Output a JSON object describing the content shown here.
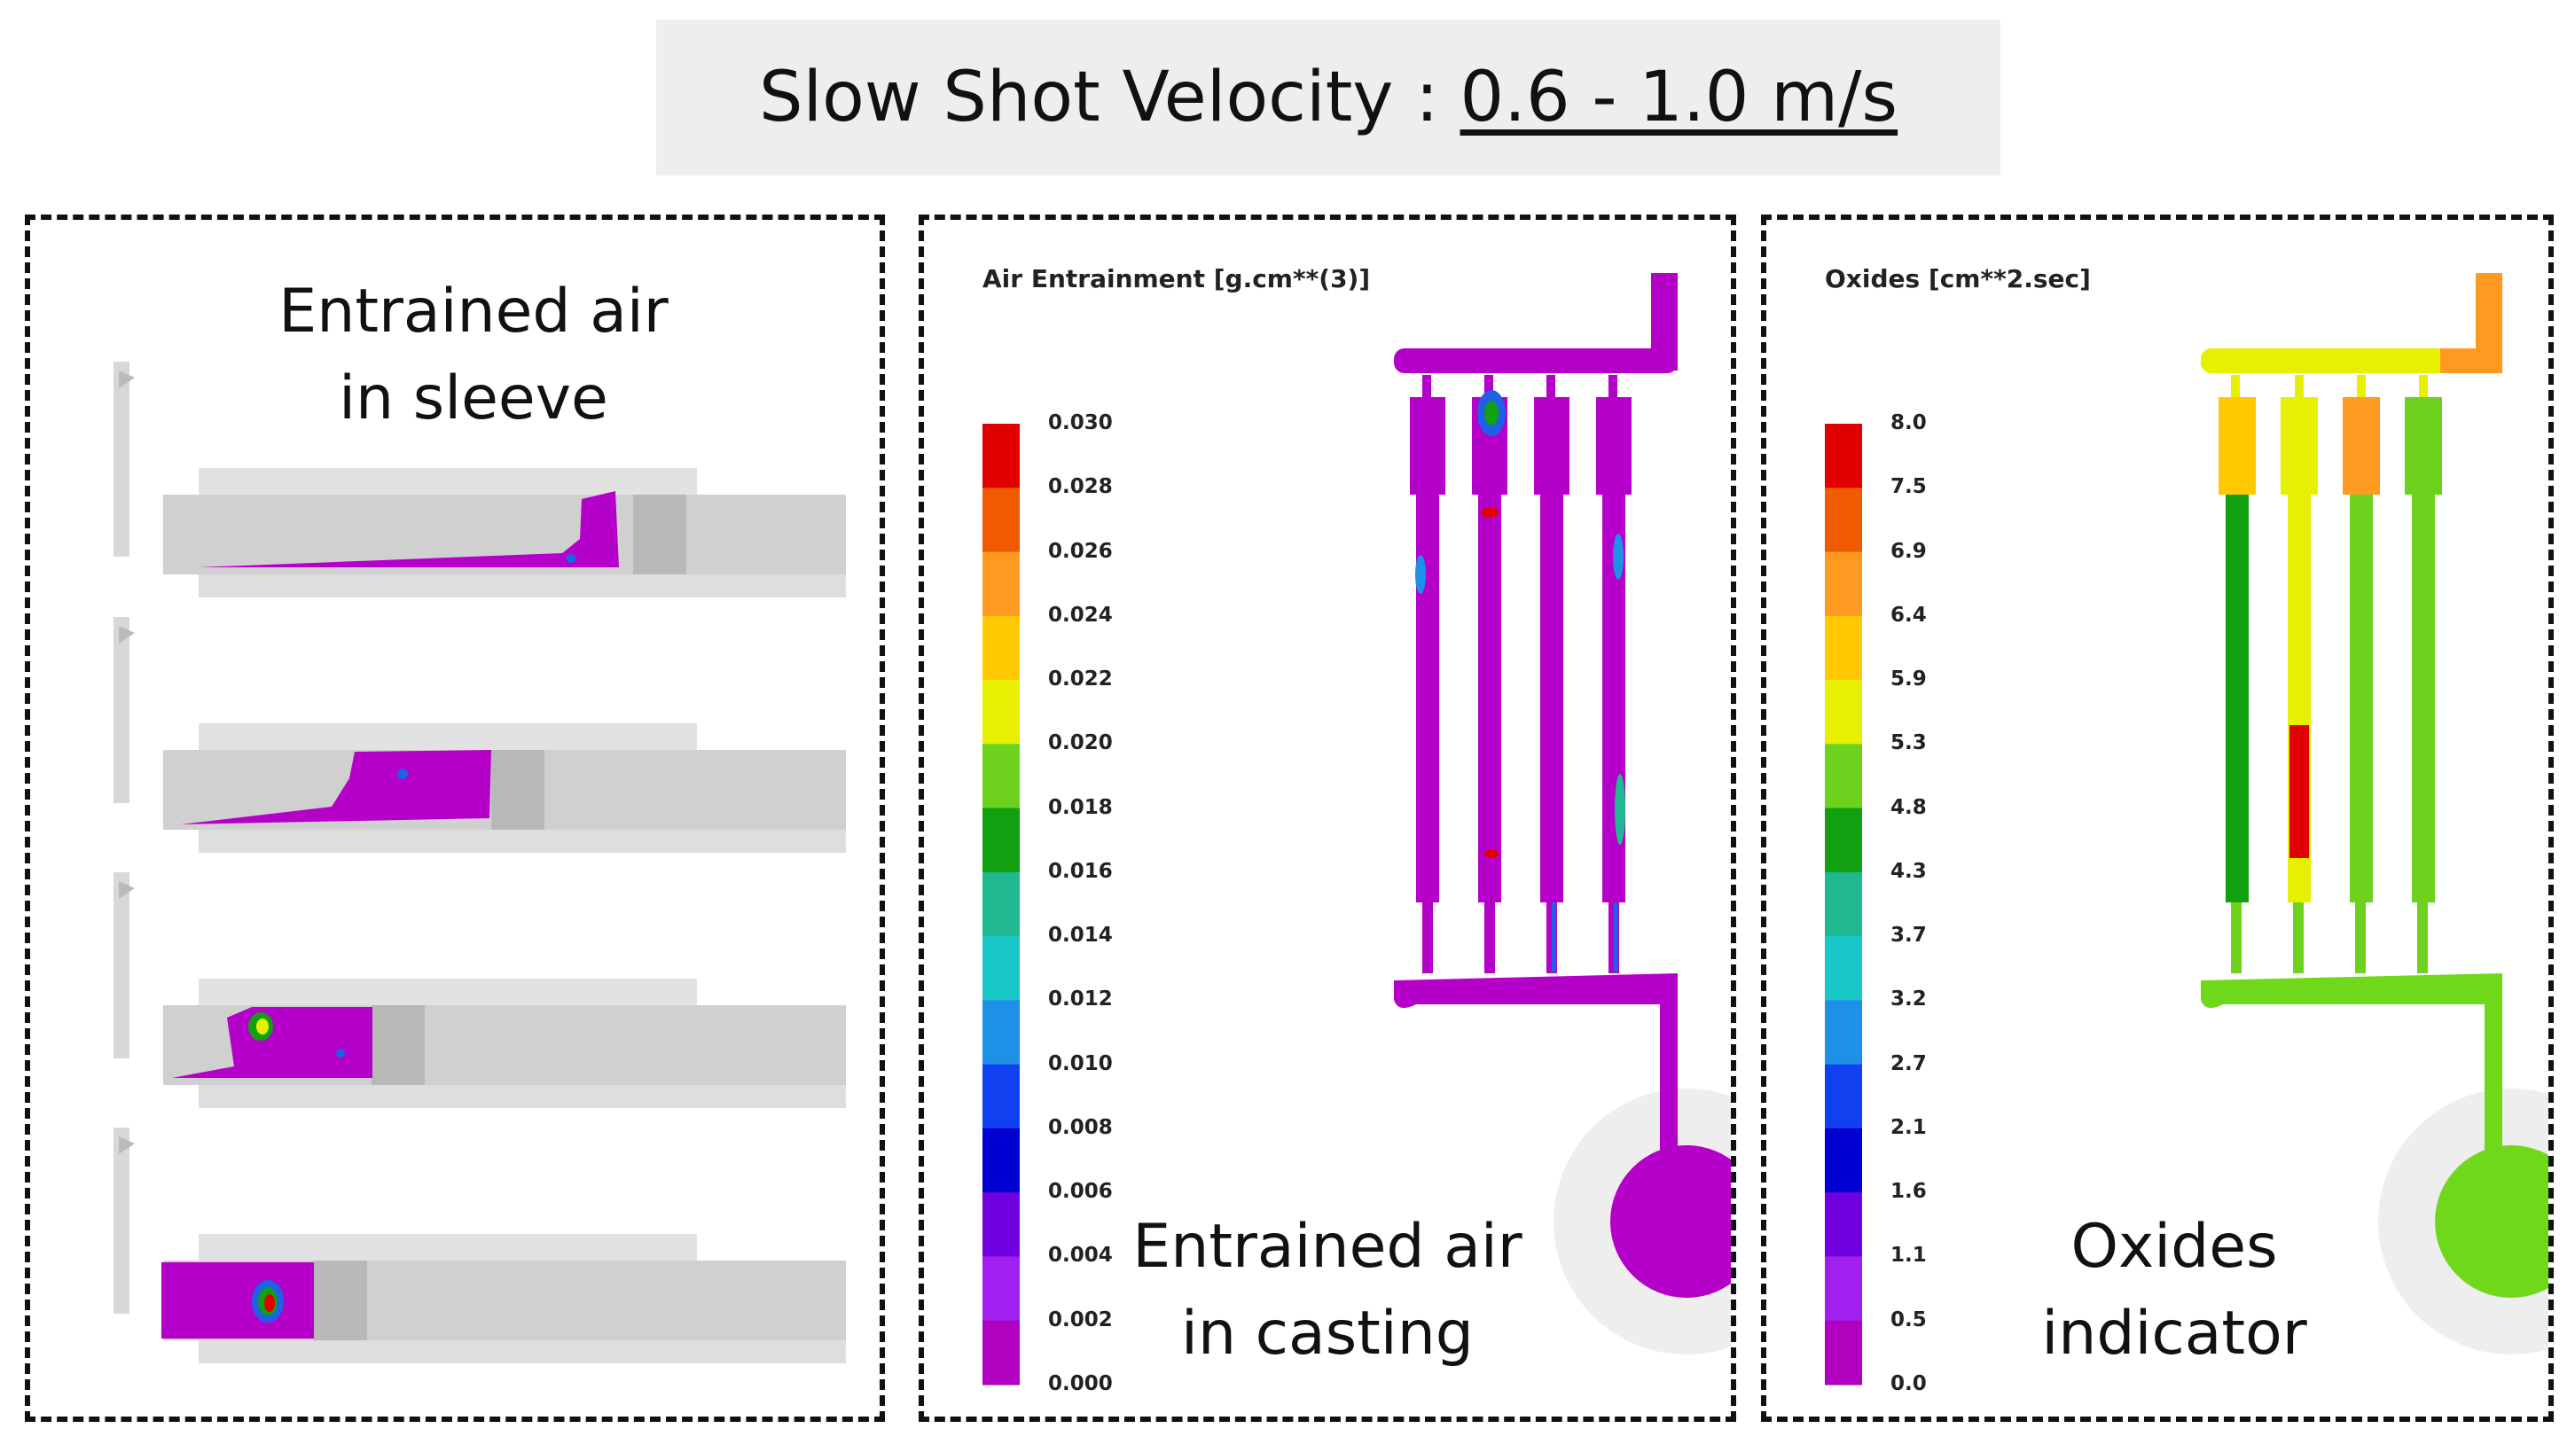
{
  "header": {
    "title_prefix": "Slow Shot Velocity :",
    "title_value": "0.6 - 1.0 m/s"
  },
  "panels": {
    "sleeve": {
      "caption_line1": "Entrained air",
      "caption_line2": "in sleeve"
    },
    "casting": {
      "legend_title": "Air Entrainment [g.cm**(3)]",
      "caption_line1": "Entrained air",
      "caption_line2": "in casting",
      "ticks": [
        "0.030",
        "0.028",
        "0.026",
        "0.024",
        "0.022",
        "0.020",
        "0.018",
        "0.016",
        "0.014",
        "0.012",
        "0.010",
        "0.008",
        "0.006",
        "0.004",
        "0.002",
        "0.000"
      ]
    },
    "oxides": {
      "legend_title": "Oxides  [cm**2.sec]",
      "caption_line1": "Oxides",
      "caption_line2": "indicator",
      "ticks": [
        "8.0",
        "7.5",
        "6.9",
        "6.4",
        "5.9",
        "5.3",
        "4.8",
        "4.3",
        "3.7",
        "3.2",
        "2.7",
        "2.1",
        "1.6",
        "1.1",
        "0.5",
        "0.0"
      ]
    }
  },
  "colors": {
    "scale": [
      "#e00000",
      "#f05a00",
      "#ff9a20",
      "#ffc800",
      "#e6f000",
      "#6cd21e",
      "#10a010",
      "#20b890",
      "#18c8c8",
      "#1e90e8",
      "#1040f0",
      "#0000d0",
      "#7000e0",
      "#a020f0",
      "#b000c0"
    ],
    "purple_fill": "#b400c8",
    "green_fill": "#70d81a",
    "sleeve_gray": "#cfcfcf"
  }
}
